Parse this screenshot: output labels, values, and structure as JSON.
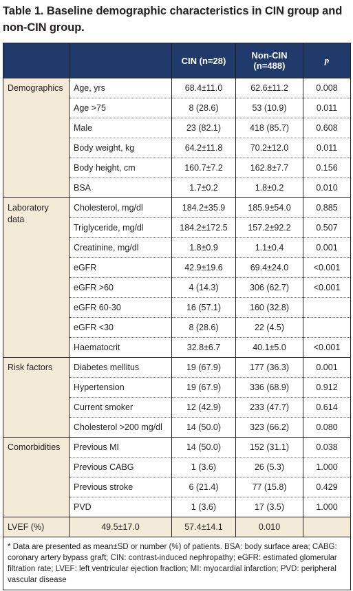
{
  "caption": "Table 1. Baseline demographic characteristics in CIN group and non-CIN group.",
  "header": {
    "col0": "",
    "col1": "",
    "cin": "CIN (n=28)",
    "noncin_line1": "Non-CIN",
    "noncin_line2": "(n=488)",
    "p": "p"
  },
  "groups": [
    {
      "name": "Demographics",
      "rows": [
        {
          "label": "Age, yrs",
          "cin": "68.4±11.0",
          "noncin": "62.6±11.2",
          "p": "0.008"
        },
        {
          "label": "Age >75",
          "cin": "8 (28.6)",
          "noncin": "53 (10.9)",
          "p": "0.011"
        },
        {
          "label": "Male",
          "cin": "23 (82.1)",
          "noncin": "418 (85.7)",
          "p": "0.608"
        },
        {
          "label": "Body weight, kg",
          "cin": "64.2±11.8",
          "noncin": "70.2±12.0",
          "p": "0.011"
        },
        {
          "label": "Body height, cm",
          "cin": "160.7±7.2",
          "noncin": "162.8±7.7",
          "p": "0.156"
        },
        {
          "label": "BSA",
          "cin": "1.7±0.2",
          "noncin": "1.8±0.2",
          "p": "0.010"
        }
      ]
    },
    {
      "name": "Laboratory data",
      "rows": [
        {
          "label": "Cholesterol, mg/dl",
          "cin": "184.2±35.9",
          "noncin": "185.9±54.0",
          "p": "0.885"
        },
        {
          "label": "Triglyceride, mg/dl",
          "cin": "184.2±172.5",
          "noncin": "157.2±92.2",
          "p": "0.507"
        },
        {
          "label": "Creatinine, mg/dl",
          "cin": "1.8±0.9",
          "noncin": "1.1±0.4",
          "p": "0.001"
        },
        {
          "label": "eGFR",
          "cin": "42.9±19.6",
          "noncin": "69.4±24.0",
          "p": "<0.001"
        },
        {
          "label": "eGFR >60",
          "cin": "4 (14.3)",
          "noncin": "306 (62.7)",
          "p": "<0.001"
        },
        {
          "label": "eGFR 60-30",
          "cin": "16 (57.1)",
          "noncin": "160 (32.8)",
          "p": ""
        },
        {
          "label": "eGFR <30",
          "cin": "8 (28.6)",
          "noncin": "22 (4.5)",
          "p": ""
        },
        {
          "label": "Haematocrit",
          "cin": "32.8±6.7",
          "noncin": "40.1±5.0",
          "p": "<0.001"
        }
      ]
    },
    {
      "name": "Risk factors",
      "rows": [
        {
          "label": "Diabetes mellitus",
          "cin": "19 (67.9)",
          "noncin": "177 (36.3)",
          "p": "0.001"
        },
        {
          "label": "Hypertension",
          "cin": "19 (67.9)",
          "noncin": "336 (68.9)",
          "p": "0.912"
        },
        {
          "label": "Current smoker",
          "cin": "12 (42.9)",
          "noncin": "233 (47.7)",
          "p": "0.614"
        },
        {
          "label": "Cholesterol >200 mg/dl",
          "cin": "14 (50.0)",
          "noncin": "323 (66.2)",
          "p": "0.080"
        }
      ]
    },
    {
      "name": "Comorbidities",
      "rows": [
        {
          "label": "Previous MI",
          "cin": "14 (50.0)",
          "noncin": "152 (31.1)",
          "p": "0.038"
        },
        {
          "label": "Previous CABG",
          "cin": "1 (3.6)",
          "noncin": "26 (5.3)",
          "p": "1.000"
        },
        {
          "label": "Previous stroke",
          "cin": "6 (21.4)",
          "noncin": "77 (15.8)",
          "p": "0.429"
        },
        {
          "label": "PVD",
          "cin": "1 (3.6)",
          "noncin": "17 (3.5)",
          "p": "1.000"
        }
      ]
    }
  ],
  "lvef_row": {
    "label": "LVEF (%)",
    "c1": "49.5±17.0",
    "c2": "57.4±14.1",
    "c3": "0.010",
    "c4": ""
  },
  "footnote": "* Data are presented as mean±SD or number (%) of patients. BSA: body surface area; CABG: coronary artery bypass graft; CIN: contrast-induced nephropathy; eGFR: estimated glomerular filtration rate; LVEF: left ventricular ejection fraction; MI: myocardial infarction; PVD: peripheral vascular disease",
  "colors": {
    "header_bg": "#1f3a6b",
    "group_bg": "#f3ead8",
    "text": "#231f20"
  }
}
